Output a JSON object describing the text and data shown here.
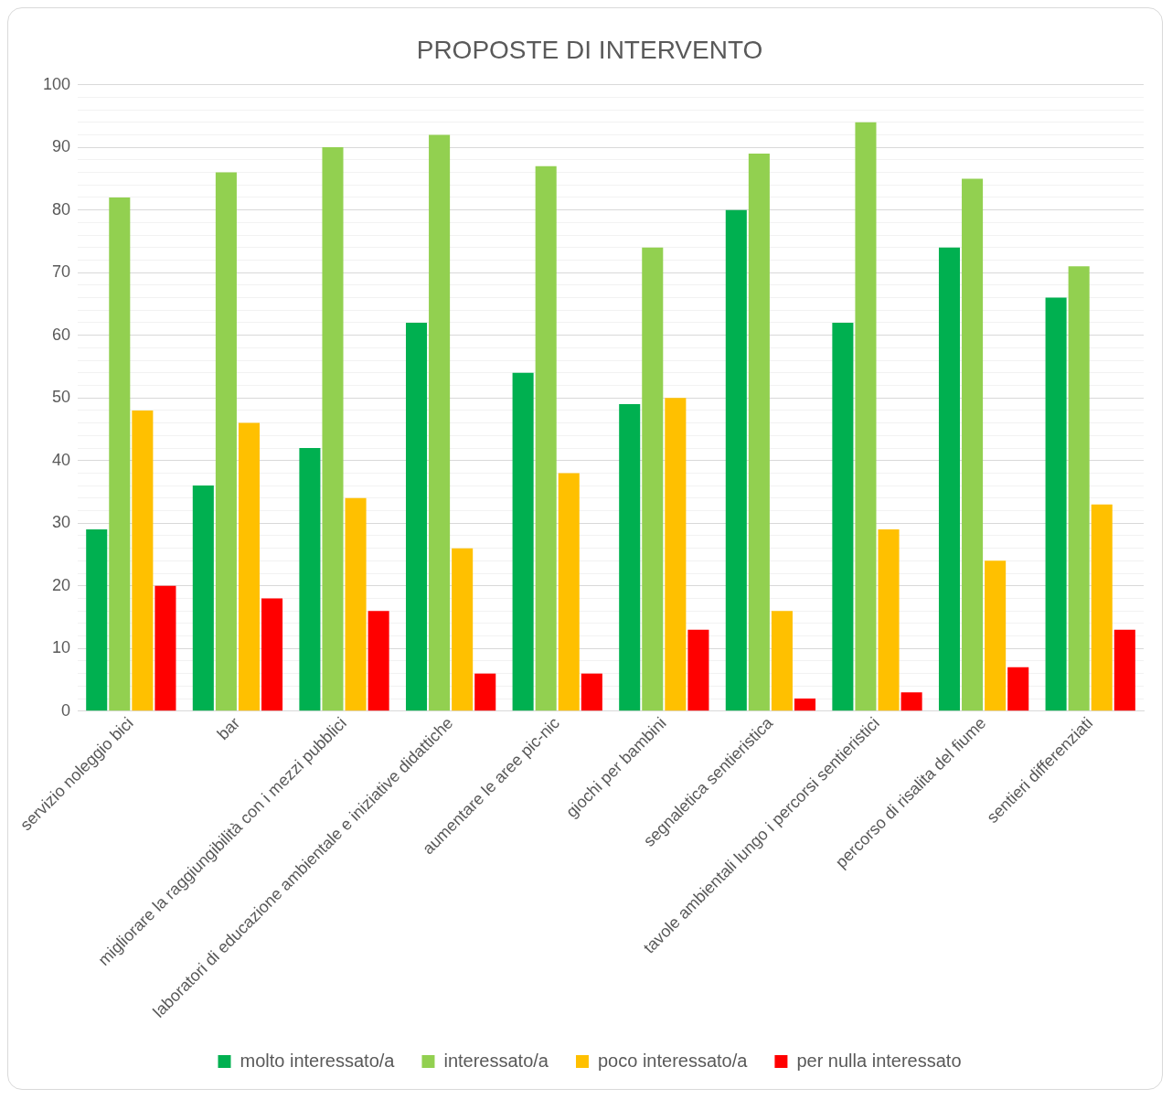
{
  "chart_data": {
    "type": "bar",
    "title": "PROPOSTE DI INTERVENTO",
    "categories": [
      "servizio noleggio bici",
      "bar",
      "migliorare la raggiungibilità con i mezzi pubblici",
      "laboratori di educazione ambientale e iniziative didattiche",
      "aumentare le aree pic-nic",
      "giochi per bambini",
      "segnaletica sentieristica",
      "tavole ambientali lungo i percorsi sentieristici",
      "percorso di risalita del fiume",
      "sentieri differenziati"
    ],
    "series": [
      {
        "name": "molto interessato/a",
        "color": "#00b050",
        "values": [
          29,
          36,
          42,
          62,
          54,
          49,
          80,
          62,
          74,
          66
        ]
      },
      {
        "name": "interessato/a",
        "color": "#92d050",
        "values": [
          82,
          86,
          90,
          92,
          87,
          74,
          89,
          94,
          85,
          71
        ]
      },
      {
        "name": "poco interessato/a",
        "color": "#ffc000",
        "values": [
          48,
          46,
          34,
          26,
          38,
          50,
          16,
          29,
          24,
          33
        ]
      },
      {
        "name": "per nulla interessato",
        "color": "#ff0000",
        "values": [
          20,
          18,
          16,
          6,
          6,
          13,
          2,
          3,
          7,
          13
        ]
      }
    ],
    "ylim": [
      0,
      100
    ],
    "yticks": [
      0,
      {
        "value": 2,
        "label": null
      },
      {
        "value": 4,
        "label": null
      },
      {
        "value": 6,
        "label": null
      },
      {
        "value": 8,
        "label": null
      },
      10,
      {
        "value": 12,
        "label": null
      },
      {
        "value": 14,
        "label": null
      },
      {
        "value": 16,
        "label": null
      },
      {
        "value": 18,
        "label": null
      },
      20,
      {
        "value": 22,
        "label": null
      },
      {
        "value": 24,
        "label": null
      },
      {
        "value": 26,
        "label": null
      },
      {
        "value": 28,
        "label": null
      },
      30,
      {
        "value": 32,
        "label": null
      },
      {
        "value": 34,
        "label": null
      },
      {
        "value": 36,
        "label": null
      },
      {
        "value": 38,
        "label": null
      },
      40,
      {
        "value": 42,
        "label": null
      },
      {
        "value": 44,
        "label": null
      },
      {
        "value": 46,
        "label": null
      },
      {
        "value": 48,
        "label": null
      },
      50,
      {
        "value": 52,
        "label": null
      },
      {
        "value": 54,
        "label": null
      },
      {
        "value": 56,
        "label": null
      },
      {
        "value": 58,
        "label": null
      },
      60,
      {
        "value": 62,
        "label": null
      },
      {
        "value": 64,
        "label": null
      },
      {
        "value": 66,
        "label": null
      },
      {
        "value": 68,
        "label": null
      },
      70,
      {
        "value": 72,
        "label": null
      },
      {
        "value": 74,
        "label": null
      },
      {
        "value": 76,
        "label": null
      },
      {
        "value": 78,
        "label": null
      },
      80,
      {
        "value": 82,
        "label": null
      },
      {
        "value": 84,
        "label": null
      },
      {
        "value": 86,
        "label": null
      },
      {
        "value": 88,
        "label": null
      },
      90,
      {
        "value": 92,
        "label": null
      },
      {
        "value": 94,
        "label": null
      },
      {
        "value": 96,
        "label": null
      },
      {
        "value": 98,
        "label": null
      },
      100
    ],
    "grid": "y",
    "legend": "bottom"
  }
}
